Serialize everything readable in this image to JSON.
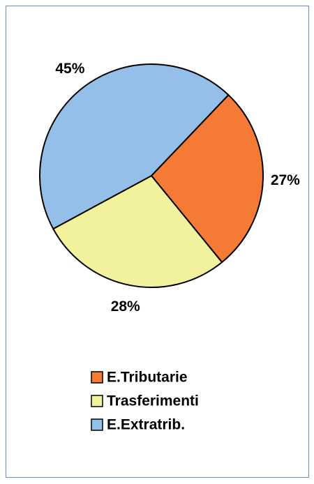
{
  "chart_data": {
    "type": "pie",
    "categories": [
      "E.Tributarie",
      "Trasferimenti",
      "E.Extratrib."
    ],
    "values": [
      27,
      28,
      45
    ],
    "value_labels": [
      "27%",
      "28%",
      "45%"
    ],
    "colors": [
      "#f47a36",
      "#f2f29e",
      "#93bfe9"
    ],
    "legend": "bottom"
  }
}
